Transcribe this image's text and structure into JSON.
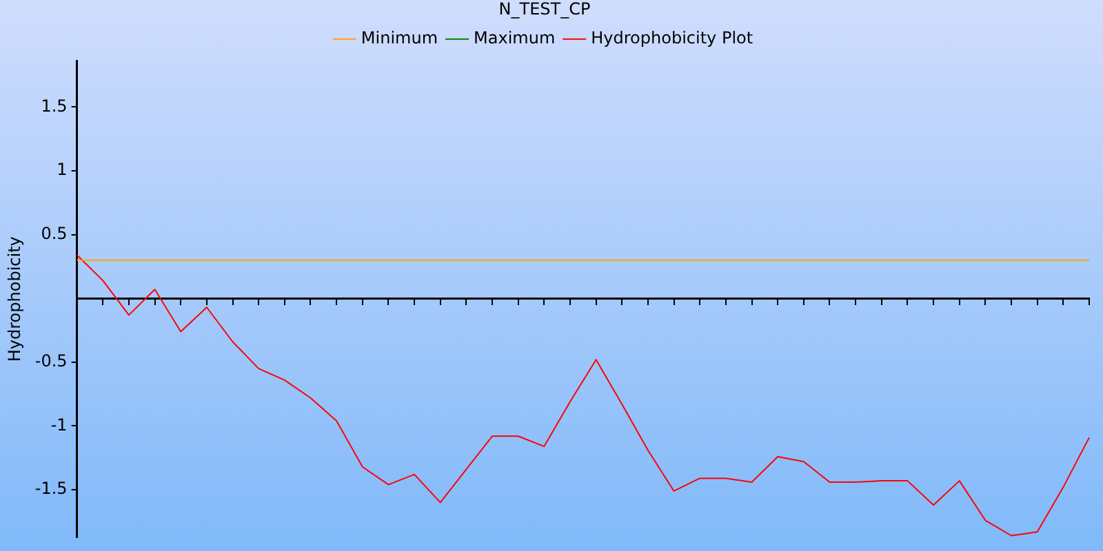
{
  "chart_data": {
    "type": "line",
    "title": "N_TEST_CP",
    "ylabel": "Hydrophobicity",
    "categories": [
      null,
      null,
      null,
      null,
      null,
      null,
      null,
      null,
      null,
      null,
      null,
      null,
      null,
      null,
      null,
      null,
      null,
      null,
      null,
      null,
      null,
      null,
      null,
      null,
      null,
      null,
      null,
      null,
      null,
      null,
      null,
      null,
      null,
      null,
      null,
      null,
      null,
      null,
      null,
      null
    ],
    "series": [
      {
        "name": "Minimum",
        "color": "#ffa500",
        "values": [
          0.3,
          0.3,
          0.3,
          0.3,
          0.3,
          0.3,
          0.3,
          0.3,
          0.3,
          0.3,
          0.3,
          0.3,
          0.3,
          0.3,
          0.3,
          0.3,
          0.3,
          0.3,
          0.3,
          0.3,
          0.3,
          0.3,
          0.3,
          0.3,
          0.3,
          0.3,
          0.3,
          0.3,
          0.3,
          0.3,
          0.3,
          0.3,
          0.3,
          0.3,
          0.3,
          0.3,
          0.3,
          0.3,
          0.3,
          0.3
        ]
      },
      {
        "name": "Maximum",
        "color": "#008000",
        "values": [
          null,
          null,
          null,
          null,
          null,
          null,
          null,
          null,
          null,
          null,
          null,
          null,
          null,
          null,
          null,
          null,
          null,
          null,
          null,
          null,
          null,
          null,
          null,
          null,
          null,
          null,
          null,
          null,
          null,
          null,
          null,
          null,
          null,
          null,
          null,
          null,
          null,
          null,
          null,
          null
        ]
      },
      {
        "name": "Hydrophobicity Plot",
        "color": "#ff0000",
        "values": [
          0.34,
          0.14,
          -0.13,
          0.07,
          -0.26,
          -0.07,
          -0.34,
          -0.55,
          -0.64,
          -0.78,
          -0.96,
          -1.32,
          -1.46,
          -1.38,
          -1.6,
          -1.34,
          -1.08,
          -1.08,
          -1.16,
          -0.81,
          -0.48,
          -0.83,
          -1.19,
          -1.51,
          -1.41,
          -1.41,
          -1.44,
          -1.24,
          -1.28,
          -1.44,
          -1.44,
          -1.43,
          -1.43,
          -1.62,
          -1.43,
          -1.74,
          -1.86,
          -1.83,
          -1.48,
          -1.09
        ]
      }
    ],
    "ylim": [
      -1.87,
      1.86
    ],
    "yticks": [
      -1.5,
      -1,
      -0.5,
      0.5,
      1,
      1.5
    ],
    "grid": false,
    "legend": "top",
    "marker": "none",
    "line_style": "solid"
  }
}
